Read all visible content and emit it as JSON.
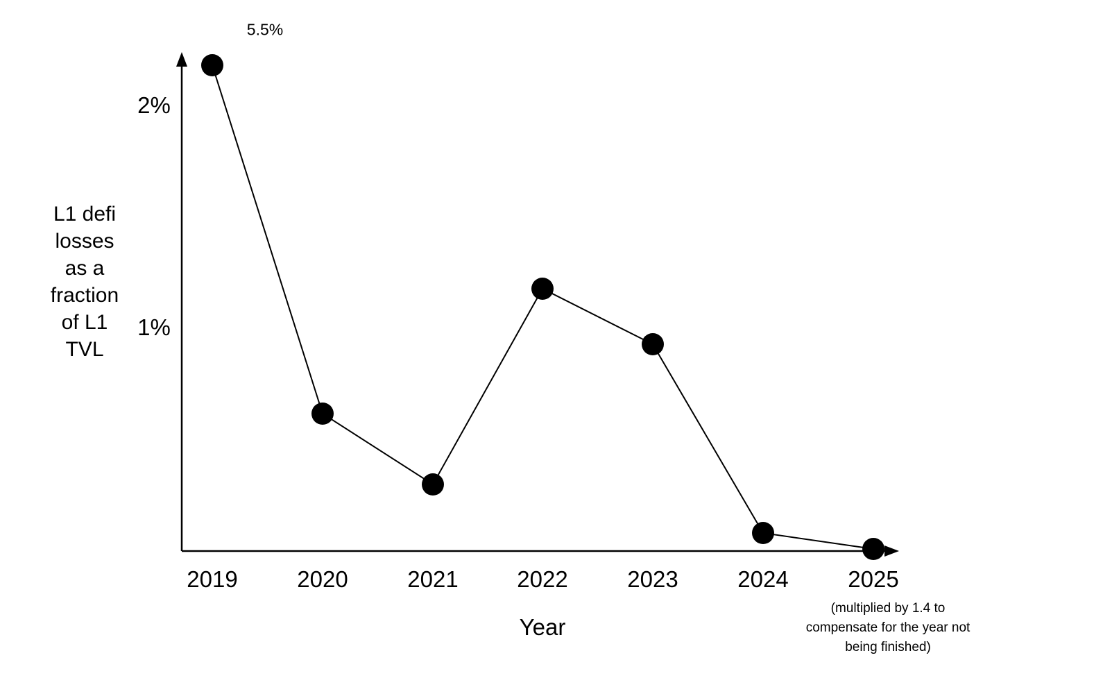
{
  "chart_data": {
    "type": "line",
    "categories": [
      "2019",
      "2020",
      "2021",
      "2022",
      "2023",
      "2024",
      "2025"
    ],
    "values_percent": [
      5.5,
      0.62,
      0.3,
      1.18,
      0.93,
      0.08,
      0.01
    ],
    "xlabel": "Year",
    "ylabel_lines": [
      "L1 defi",
      "losses",
      "as a",
      "fraction",
      "of L1",
      "TVL"
    ],
    "yticks": [
      {
        "label": "2%",
        "value": 2
      },
      {
        "label": "1%",
        "value": 1
      }
    ],
    "ylim": [
      0,
      2.2
    ],
    "grid": false,
    "legend": "none",
    "marker": "filled-circle",
    "line_color": "#000000",
    "annotations": [
      {
        "name": "peak-value",
        "text": "5.5%",
        "category": "2019"
      },
      {
        "name": "2025-adjustment-note",
        "lines": [
          "(multiplied by 1.4 to",
          "compensate for the year not",
          "being finished)"
        ],
        "category": "2025"
      }
    ]
  }
}
